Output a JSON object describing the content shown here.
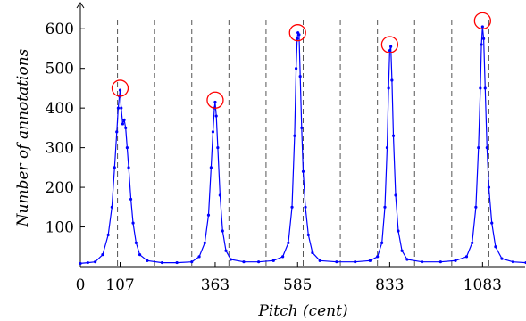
{
  "chart_data": {
    "type": "line",
    "title": "",
    "xlabel": "Pitch (cent)",
    "ylabel": "Number of annotations",
    "xlim": [
      0,
      1200
    ],
    "ylim": [
      0,
      650
    ],
    "xticks": [
      0,
      107,
      363,
      585,
      833,
      1083
    ],
    "x_tick_labels": [
      "0",
      "107",
      "363",
      "585",
      "833",
      "1083"
    ],
    "yticks": [
      100,
      200,
      300,
      400,
      500,
      600
    ],
    "y_tick_labels": [
      "100",
      "200",
      "300",
      "400",
      "500",
      "600"
    ],
    "dashed_vertical_lines_x": [
      100,
      200,
      300,
      400,
      500,
      600,
      700,
      800,
      900,
      1000,
      1100
    ],
    "grid": false,
    "legend": "none",
    "series": [
      {
        "color": "#0000ff",
        "marker": "dot",
        "points": [
          [
            0,
            8
          ],
          [
            20,
            10
          ],
          [
            40,
            12
          ],
          [
            60,
            30
          ],
          [
            75,
            80
          ],
          [
            85,
            150
          ],
          [
            92,
            250
          ],
          [
            98,
            340
          ],
          [
            102,
            400
          ],
          [
            105,
            430
          ],
          [
            107,
            445
          ],
          [
            110,
            400
          ],
          [
            114,
            360
          ],
          [
            118,
            370
          ],
          [
            122,
            350
          ],
          [
            126,
            300
          ],
          [
            130,
            250
          ],
          [
            136,
            170
          ],
          [
            142,
            110
          ],
          [
            150,
            60
          ],
          [
            160,
            30
          ],
          [
            180,
            15
          ],
          [
            220,
            10
          ],
          [
            260,
            10
          ],
          [
            300,
            12
          ],
          [
            320,
            25
          ],
          [
            335,
            60
          ],
          [
            345,
            130
          ],
          [
            352,
            250
          ],
          [
            357,
            340
          ],
          [
            361,
            400
          ],
          [
            363,
            415
          ],
          [
            366,
            380
          ],
          [
            370,
            300
          ],
          [
            376,
            180
          ],
          [
            383,
            90
          ],
          [
            392,
            40
          ],
          [
            405,
            18
          ],
          [
            440,
            12
          ],
          [
            480,
            12
          ],
          [
            520,
            15
          ],
          [
            545,
            25
          ],
          [
            560,
            60
          ],
          [
            570,
            150
          ],
          [
            577,
            330
          ],
          [
            581,
            500
          ],
          [
            584,
            575
          ],
          [
            586,
            590
          ],
          [
            589,
            585
          ],
          [
            592,
            480
          ],
          [
            596,
            350
          ],
          [
            600,
            240
          ],
          [
            606,
            150
          ],
          [
            614,
            80
          ],
          [
            625,
            35
          ],
          [
            645,
            15
          ],
          [
            690,
            12
          ],
          [
            740,
            12
          ],
          [
            780,
            15
          ],
          [
            800,
            25
          ],
          [
            812,
            60
          ],
          [
            820,
            150
          ],
          [
            826,
            300
          ],
          [
            830,
            450
          ],
          [
            833,
            545
          ],
          [
            836,
            555
          ],
          [
            839,
            470
          ],
          [
            843,
            330
          ],
          [
            849,
            180
          ],
          [
            856,
            90
          ],
          [
            866,
            40
          ],
          [
            880,
            18
          ],
          [
            920,
            12
          ],
          [
            970,
            12
          ],
          [
            1010,
            15
          ],
          [
            1040,
            25
          ],
          [
            1055,
            60
          ],
          [
            1065,
            150
          ],
          [
            1072,
            300
          ],
          [
            1077,
            450
          ],
          [
            1080,
            560
          ],
          [
            1083,
            605
          ],
          [
            1086,
            575
          ],
          [
            1090,
            450
          ],
          [
            1095,
            300
          ],
          [
            1100,
            200
          ],
          [
            1108,
            110
          ],
          [
            1118,
            50
          ],
          [
            1135,
            20
          ],
          [
            1165,
            12
          ],
          [
            1200,
            10
          ]
        ]
      }
    ],
    "annotations": [
      {
        "type": "circle",
        "color": "#ff0000",
        "x": 107,
        "y": 450
      },
      {
        "type": "circle",
        "color": "#ff0000",
        "x": 363,
        "y": 420
      },
      {
        "type": "circle",
        "color": "#ff0000",
        "x": 585,
        "y": 590
      },
      {
        "type": "circle",
        "color": "#ff0000",
        "x": 833,
        "y": 560
      },
      {
        "type": "circle",
        "color": "#ff0000",
        "x": 1083,
        "y": 620
      }
    ]
  }
}
